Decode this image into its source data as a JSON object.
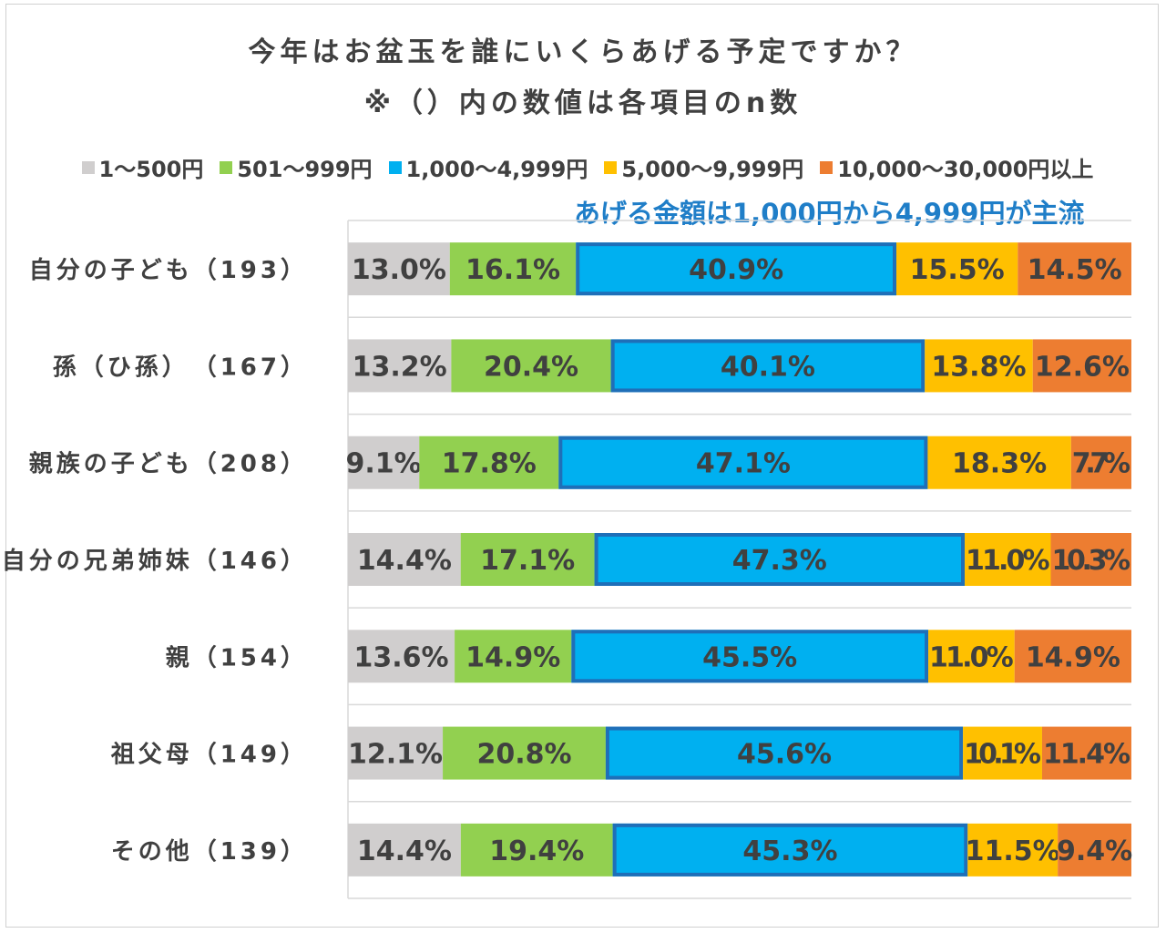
{
  "title_line1": "今年はお盆玉を誰にいくらあげる予定ですか？",
  "title_line2": "※（）内の数値は各項目のn数",
  "annotation": "あげる金額は1,000円から4,999円が主流",
  "chart_data": {
    "type": "bar",
    "orientation": "horizontal",
    "stacked": true,
    "normalized_percent": true,
    "title": "今年はお盆玉を誰にいくらあげる予定ですか？",
    "subtitle": "※（）内の数値は各項目のn数",
    "categories": [
      "自分の子ども（193）",
      "孫（ひ孫）　（167）",
      "親族の子ども（208）",
      "自分の兄弟姉妹（146）",
      "親（154）",
      "祖父母（149）",
      "その他（139）"
    ],
    "series": [
      {
        "name": "1～500円",
        "color": "#d0cece",
        "values": [
          13.0,
          13.2,
          9.1,
          14.4,
          13.6,
          12.1,
          14.4
        ],
        "labels": [
          "13.0%",
          "13.2%",
          "9.1%",
          "14.4%",
          "13.6%",
          "12.1%",
          "14.4%"
        ]
      },
      {
        "name": "501～999円",
        "color": "#92d050",
        "values": [
          16.1,
          20.4,
          17.8,
          17.1,
          14.9,
          20.8,
          19.4
        ],
        "labels": [
          "16.1%",
          "20.4%",
          "17.8%",
          "17.1%",
          "14.9%",
          "20.8%",
          "19.4%"
        ]
      },
      {
        "name": "1,000～4,999円",
        "color": "#00b0f0",
        "values": [
          40.9,
          40.1,
          47.1,
          47.3,
          45.5,
          45.6,
          45.3
        ],
        "labels": [
          "40.9%",
          "40.1%",
          "47.1%",
          "47.3%",
          "45.5%",
          "45.6%",
          "45.3%"
        ],
        "highlight_border": "#1f6fb8"
      },
      {
        "name": "5,000～9,999円",
        "color": "#ffc000",
        "values": [
          15.5,
          13.8,
          18.3,
          11.0,
          11.0,
          10.1,
          11.5
        ],
        "labels": [
          "15.5%",
          "13.8%",
          "18.3%",
          "11.0%",
          "11.0%",
          "10.1%",
          "11.5%"
        ]
      },
      {
        "name": "10,000～30,000円以上",
        "color": "#ed7d31",
        "values": [
          14.5,
          12.6,
          7.7,
          10.3,
          14.9,
          11.4,
          9.4
        ],
        "labels": [
          "14.5%",
          "12.6%",
          "7.7%",
          "10.3%",
          "14.9%",
          "11.4%",
          "9.4%"
        ]
      }
    ],
    "legend_position": "top",
    "grid": true
  }
}
